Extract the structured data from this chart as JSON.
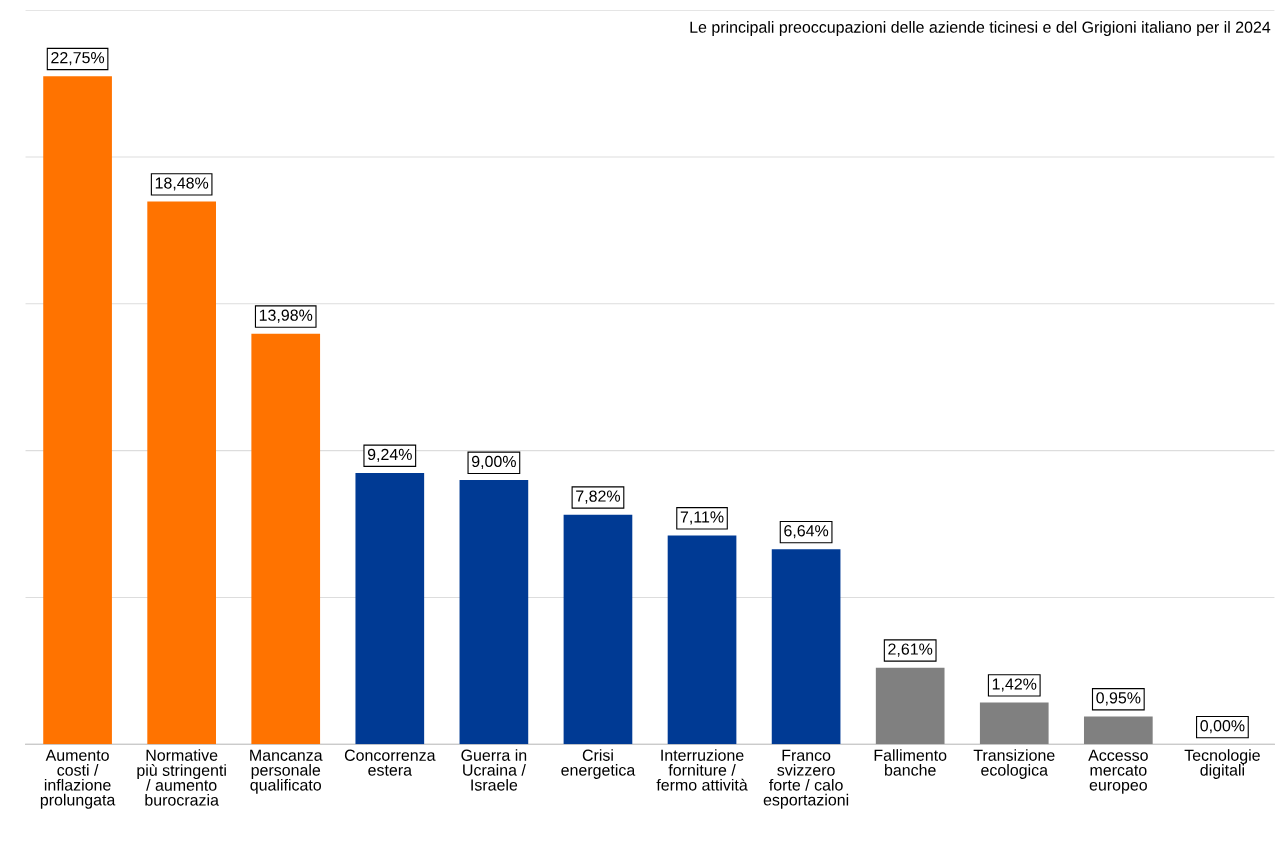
{
  "chart_data": {
    "type": "bar",
    "title": "Le principali preoccupazioni delle aziende ticinesi e del Grigioni italiano per il 2024",
    "categories": [
      "Aumento\ncosti /\ninflazione\nprolungata",
      "Normative\npiù stringenti\n/ aumento\nburocrazia",
      "Mancanza\npersonale\nqualificato",
      "Concorrenza\nestera",
      "Guerra in\nUcraina /\nIsraele",
      "Crisi\nenergetica",
      "Interruzione\nforniture /\nfermo attività",
      "Franco\nsvizzero\nforte / calo\nesportazioni",
      "Fallimento\nbanche",
      "Transizione\necologica",
      "Accesso\nmercato\neuropeo",
      "Tecnologie\ndigitali"
    ],
    "values": [
      22.75,
      18.48,
      13.98,
      9.24,
      9.0,
      7.82,
      7.11,
      6.64,
      2.61,
      1.42,
      0.95,
      0.0
    ],
    "value_labels": [
      "22,75%",
      "18,48%",
      "13,98%",
      "9,24%",
      "9,00%",
      "7,82%",
      "7,11%",
      "6,64%",
      "2,61%",
      "1,42%",
      "0,95%",
      "0,00%"
    ],
    "colors": [
      "#ff7300",
      "#ff7300",
      "#ff7300",
      "#003a94",
      "#003a94",
      "#003a94",
      "#003a94",
      "#003a94",
      "#808080",
      "#808080",
      "#808080",
      "#808080"
    ],
    "ylim": [
      0,
      25
    ],
    "yticks": [
      {
        "value": 0,
        "label": null
      },
      {
        "value": 5,
        "label": null
      },
      {
        "value": 10,
        "label": null
      },
      {
        "value": 15,
        "label": null
      },
      {
        "value": 20,
        "label": null
      },
      {
        "value": 25,
        "label": null
      }
    ],
    "tick_labels": "x",
    "grid": "y",
    "legend": false
  }
}
